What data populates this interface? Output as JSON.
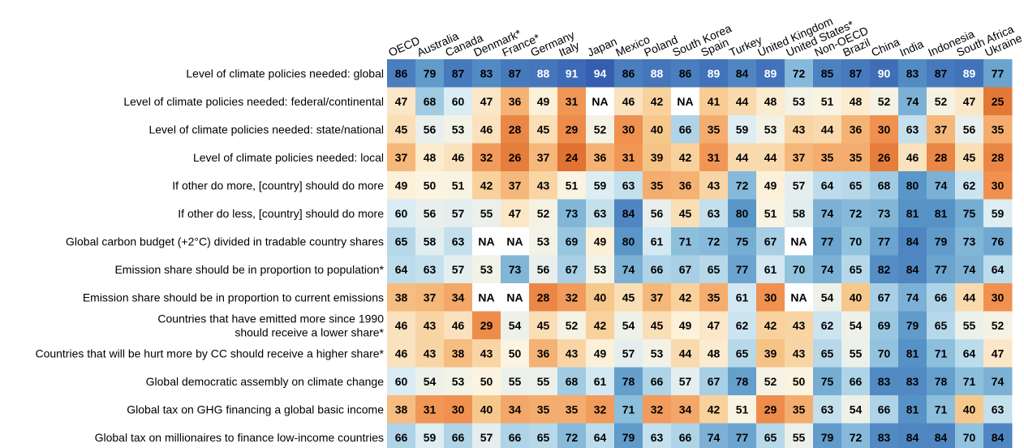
{
  "chart_data": {
    "type": "heatmap",
    "title": "",
    "xlabel": "",
    "ylabel": "",
    "columns": [
      "OECD",
      "Australia",
      "Canada",
      "Denmark*",
      "France*",
      "Germany",
      "Italy",
      "Japan",
      "Mexico",
      "Poland",
      "South Korea",
      "Spain",
      "Turkey",
      "United Kingdom",
      "United States*",
      "Non-OECD",
      "Brazil",
      "China",
      "India",
      "Indonesia",
      "South Africa",
      "Ukraine"
    ],
    "rows": [
      {
        "label": [
          "Level of climate policies needed: global"
        ],
        "values": [
          86,
          79,
          87,
          83,
          87,
          88,
          91,
          94,
          86,
          88,
          86,
          89,
          84,
          89,
          72,
          85,
          87,
          90,
          83,
          87,
          89,
          77
        ]
      },
      {
        "label": [
          "Level of climate policies needed: federal/continental"
        ],
        "values": [
          47,
          68,
          60,
          47,
          36,
          49,
          31,
          "NA",
          46,
          42,
          "NA",
          41,
          44,
          48,
          53,
          51,
          48,
          52,
          74,
          52,
          47,
          25
        ]
      },
      {
        "label": [
          "Level of climate policies needed: state/national"
        ],
        "values": [
          45,
          56,
          53,
          46,
          28,
          45,
          29,
          52,
          30,
          40,
          66,
          35,
          59,
          53,
          43,
          44,
          36,
          30,
          63,
          37,
          56,
          35
        ]
      },
      {
        "label": [
          "Level of climate policies needed: local"
        ],
        "values": [
          37,
          48,
          46,
          32,
          26,
          37,
          24,
          36,
          31,
          39,
          42,
          31,
          44,
          44,
          37,
          35,
          35,
          26,
          46,
          28,
          45,
          28
        ]
      },
      {
        "label": [
          "If other do more, [country] should do more"
        ],
        "values": [
          49,
          50,
          51,
          42,
          37,
          43,
          51,
          59,
          63,
          35,
          36,
          43,
          72,
          49,
          57,
          64,
          65,
          68,
          80,
          74,
          62,
          30
        ]
      },
      {
        "label": [
          "If other do less, [country] should do more"
        ],
        "values": [
          60,
          56,
          57,
          55,
          47,
          52,
          73,
          63,
          84,
          56,
          45,
          63,
          80,
          51,
          58,
          74,
          72,
          73,
          81,
          81,
          75,
          59
        ]
      },
      {
        "label": [
          "Global carbon budget (+2°C) divided in tradable country shares"
        ],
        "values": [
          65,
          58,
          63,
          "NA",
          "NA",
          53,
          69,
          49,
          80,
          61,
          71,
          72,
          75,
          67,
          "NA",
          77,
          70,
          77,
          84,
          79,
          73,
          76
        ]
      },
      {
        "label": [
          "Emission share should be in proportion to population*"
        ],
        "values": [
          64,
          63,
          57,
          53,
          73,
          56,
          67,
          53,
          74,
          66,
          67,
          65,
          77,
          61,
          70,
          74,
          65,
          82,
          84,
          77,
          74,
          64
        ]
      },
      {
        "label": [
          "Emission share should be in proportion to current emissions"
        ],
        "values": [
          38,
          37,
          34,
          "NA",
          "NA",
          28,
          32,
          40,
          45,
          37,
          42,
          35,
          61,
          30,
          "NA",
          54,
          40,
          67,
          74,
          66,
          44,
          30
        ]
      },
      {
        "label": [
          "Countries that have emitted more since 1990",
          "should receive a lower share*"
        ],
        "values": [
          46,
          43,
          46,
          29,
          54,
          45,
          52,
          42,
          54,
          45,
          49,
          47,
          62,
          42,
          43,
          62,
          54,
          69,
          79,
          65,
          55,
          52
        ]
      },
      {
        "label": [
          "Countries that will be hurt more by CC should receive a higher share*"
        ],
        "values": [
          46,
          43,
          38,
          43,
          50,
          36,
          43,
          49,
          57,
          53,
          44,
          48,
          65,
          39,
          43,
          65,
          55,
          70,
          81,
          71,
          64,
          47
        ]
      },
      {
        "label": [
          "Global democratic assembly on climate change"
        ],
        "values": [
          60,
          54,
          53,
          50,
          55,
          55,
          68,
          61,
          78,
          66,
          57,
          67,
          78,
          52,
          50,
          75,
          66,
          83,
          83,
          78,
          71,
          74
        ]
      },
      {
        "label": [
          "Global tax on GHG financing a global basic income"
        ],
        "values": [
          38,
          31,
          30,
          40,
          34,
          35,
          35,
          32,
          71,
          32,
          34,
          42,
          51,
          29,
          35,
          63,
          54,
          66,
          81,
          71,
          40,
          63
        ]
      },
      {
        "label": [
          "Global tax on millionaires to finance low-income countries"
        ],
        "values": [
          66,
          59,
          66,
          57,
          66,
          65,
          72,
          64,
          79,
          63,
          66,
          74,
          77,
          65,
          55,
          79,
          72,
          83,
          84,
          84,
          70,
          84
        ]
      }
    ]
  }
}
